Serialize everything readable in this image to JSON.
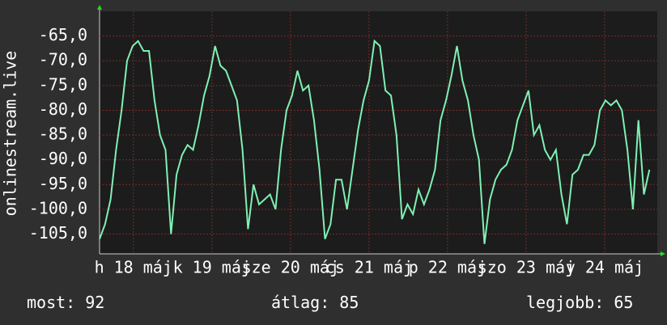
{
  "chart_data": {
    "type": "line",
    "ylabel": "onlinestream.live",
    "x": [
      0,
      0.07,
      0.14,
      0.21,
      0.28,
      0.35,
      0.42,
      0.49,
      0.56,
      0.63,
      0.7,
      0.77,
      0.84,
      0.91,
      0.98,
      1.05,
      1.12,
      1.19,
      1.26,
      1.33,
      1.4,
      1.47,
      1.54,
      1.61,
      1.68,
      1.75,
      1.82,
      1.89,
      1.96,
      2.03,
      2.1,
      2.17,
      2.24,
      2.31,
      2.38,
      2.45,
      2.52,
      2.59,
      2.66,
      2.73,
      2.8,
      2.87,
      2.94,
      3.01,
      3.08,
      3.15,
      3.22,
      3.29,
      3.36,
      3.43,
      3.5,
      3.57,
      3.64,
      3.71,
      3.78,
      3.85,
      3.92,
      3.99,
      4.06,
      4.13,
      4.2,
      4.27,
      4.34,
      4.41,
      4.48,
      4.55,
      4.62,
      4.69,
      4.76,
      4.83,
      4.9,
      4.97,
      5.04,
      5.11,
      5.18,
      5.25,
      5.32,
      5.39,
      5.46,
      5.53,
      5.6,
      5.67,
      5.74,
      5.81,
      5.88,
      5.95,
      6.02,
      6.09,
      6.16,
      6.23,
      6.3,
      6.37,
      6.44,
      6.51,
      6.58,
      6.65,
      6.72,
      6.79,
      6.86,
      6.93,
      7.0
    ],
    "series": [
      {
        "name": "onlinestream.live",
        "color": "#7ff0b4",
        "values": [
          -106,
          -103,
          -98,
          -88,
          -80,
          -70,
          -67,
          -66,
          -68,
          -68,
          -78,
          -85,
          -88,
          -105,
          -93,
          -89,
          -87,
          -88,
          -83,
          -77,
          -73,
          -67,
          -71,
          -72,
          -75,
          -78,
          -88,
          -104,
          -95,
          -99,
          -98,
          -97,
          -100,
          -88,
          -80,
          -77,
          -72,
          -76,
          -75,
          -82,
          -92,
          -106,
          -103,
          -94,
          -94,
          -100,
          -92,
          -84,
          -78,
          -74,
          -66,
          -67,
          -76,
          -77,
          -85,
          -102,
          -99,
          -101,
          -96,
          -99,
          -96,
          -92,
          -82,
          -78,
          -73,
          -67,
          -74,
          -78,
          -85,
          -90,
          -107,
          -98,
          -94,
          -92,
          -91,
          -88,
          -82,
          -79,
          -76,
          -85,
          -83,
          -88,
          -90,
          -88,
          -97,
          -103,
          -93,
          -92,
          -89,
          -89,
          -87,
          -80,
          -78,
          -79,
          -78,
          -80,
          -88,
          -100,
          -82,
          -97,
          -92
        ]
      }
    ],
    "xlim": [
      0,
      7.1
    ],
    "xticks": [
      {
        "value": 0.43,
        "label": "h 18 máj"
      },
      {
        "value": 1.43,
        "label": "k 19 máj"
      },
      {
        "value": 2.43,
        "label": "sze 20 máj"
      },
      {
        "value": 3.43,
        "label": "cs 21 máj"
      },
      {
        "value": 4.43,
        "label": "p 22 máj"
      },
      {
        "value": 5.43,
        "label": "szo 23 máj"
      },
      {
        "value": 6.43,
        "label": "v 24 máj"
      }
    ],
    "ylim": [
      -109,
      -60
    ],
    "yticks": [
      {
        "value": -105,
        "label": "-105,0"
      },
      {
        "value": -100,
        "label": "-100,0"
      },
      {
        "value": -95,
        "label": "-95,0"
      },
      {
        "value": -90,
        "label": "-90,0"
      },
      {
        "value": -85,
        "label": "-85,0"
      },
      {
        "value": -80,
        "label": "-80,0"
      },
      {
        "value": -75,
        "label": "-75,0"
      },
      {
        "value": -70,
        "label": "-70,0"
      },
      {
        "value": -65,
        "label": "-65,0"
      }
    ],
    "grid": true,
    "stats": [
      {
        "label": "most:",
        "value": 92
      },
      {
        "label": "átlag:",
        "value": 85
      },
      {
        "label": "legjobb:",
        "value": 65
      }
    ]
  }
}
